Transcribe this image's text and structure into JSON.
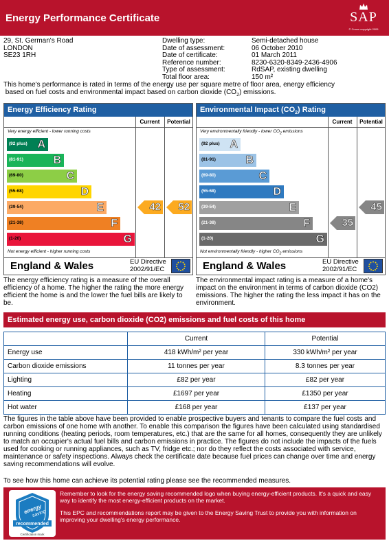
{
  "header": {
    "title": "Energy Performance Certificate",
    "sap_logo": "SAP",
    "sap_copyright": "© Crown copyright 2005"
  },
  "address": {
    "line1": "29, St. German's Road",
    "line2": "LONDON",
    "line3": "SE23 1RH"
  },
  "details": {
    "labels": [
      "Dwelling type:",
      "Date of assessment:",
      "Date of certificate:",
      "Reference number:",
      "Type of assessment:",
      "Total floor area:"
    ],
    "values": [
      "Semi-detached house",
      "06 October 2010",
      "01 March 2011",
      "8230-6320-8349-2436-4906",
      "RdSAP, existing dwelling",
      "150 m²"
    ]
  },
  "intro": {
    "line1": "This home's performance is rated in terms of the energy use per square metre of floor area, energy efficiency",
    "line2a": "based on fuel costs and environmental impact based on carbon dioxide (CO",
    "line2sub": "2",
    "line2b": ") emissions."
  },
  "efficiency_panel": {
    "title": "Energy Efficiency Rating",
    "current_label": "Current",
    "potential_label": "Potential",
    "top_note": "Very energy efficient - lower running costs",
    "bottom_note": "Not energy efficient - higher running costs",
    "bands": [
      {
        "range": "(92 plus)",
        "letter": "A",
        "color": "#008054"
      },
      {
        "range": "(81-91)",
        "letter": "B",
        "color": "#19b459"
      },
      {
        "range": "(69-80)",
        "letter": "C",
        "color": "#8dce46"
      },
      {
        "range": "(55-68)",
        "letter": "D",
        "color": "#ffd500"
      },
      {
        "range": "(39-54)",
        "letter": "E",
        "color": "#fcaa65"
      },
      {
        "range": "(21-38)",
        "letter": "F",
        "color": "#ef8023"
      },
      {
        "range": "(1-20)",
        "letter": "G",
        "color": "#e9153b"
      }
    ],
    "current_value": "42",
    "potential_value": "52",
    "arrow_color": "#fcaa20",
    "region": "England & Wales",
    "directive_line1": "EU Directive",
    "directive_line2": "2002/91/EC",
    "explanation": "The energy efficiency rating is a measure of the overall efficiency of a home. The higher the rating the more energy efficient the home is and the lower the fuel bills are likely to be."
  },
  "environment_panel": {
    "title_a": "Environmental Impact (CO",
    "title_sub": "2",
    "title_b": ") Rating",
    "current_label": "Current",
    "potential_label": "Potential",
    "top_note": "Very environmentally friendly - lower CO",
    "top_note_sub": "2",
    "top_note_end": " emissions",
    "bottom_note": "Not environmentally friendly - higher CO",
    "bottom_note_sub": "2",
    "bottom_note_end": " emissions",
    "bands": [
      {
        "range": "(92 plus)",
        "letter": "A",
        "color": "#cfe3f3"
      },
      {
        "range": "(81-91)",
        "letter": "B",
        "color": "#9cc3e6"
      },
      {
        "range": "(69-80)",
        "letter": "C",
        "color": "#5a9bd5"
      },
      {
        "range": "(55-68)",
        "letter": "D",
        "color": "#2f7ac0"
      },
      {
        "range": "(39-54)",
        "letter": "E",
        "color": "#a0a0a0"
      },
      {
        "range": "(21-38)",
        "letter": "F",
        "color": "#868686"
      },
      {
        "range": "(1-20)",
        "letter": "G",
        "color": "#6a6a6a"
      }
    ],
    "current_value": "35",
    "potential_value": "45",
    "arrow_color": "#868686",
    "region": "England & Wales",
    "directive_line1": "EU Directive",
    "directive_line2": "2002/91/EC",
    "explanation": "The environmental impact rating is a measure of a home's impact on the environment in terms of carbon dioxide (CO2) emissions. The higher the rating the less impact it has on the environment."
  },
  "estimate": {
    "title": "Estimated energy use, carbon dioxide (CO2) emissions and fuel costs of this home",
    "col_current": "Current",
    "col_potential": "Potential",
    "rows": [
      {
        "label": "Energy use",
        "current": "418 kWh/m² per year",
        "potential": "330 kWh/m² per year"
      },
      {
        "label": "Carbon dioxide emissions",
        "current": "11 tonnes per year",
        "potential": "8.3 tonnes per year"
      },
      {
        "label": "Lighting",
        "current": "£82 per year",
        "potential": "£82 per year"
      },
      {
        "label": "Heating",
        "current": "£1697 per year",
        "potential": "£1350 per year"
      },
      {
        "label": "Hot water",
        "current": "£168 per year",
        "potential": "£137 per year"
      }
    ]
  },
  "figures_text": "The figures in the table above have been provided to enable prospective buyers and tenants to compare the fuel costs and carbon emissions of one home with another. To enable this comparison the figures have been calculated using standardised running conditions (heating periods, room temperatures, etc.) that are the same for all homes, consequently they are unlikely to match an occupier's actual fuel bills and carbon emissions in practice. The figures do not include the impacts of the fuels used for cooking or running appliances, such as TV, fridge etc.; nor do they reflect the costs associated with service, maintenance or safety inspections. Always check the certificate date because fuel prices can change over time and energy saving recommendations will evolve.",
  "see_text": "To see how this home can achieve its potential rating please see the recommended measures.",
  "bottom": {
    "text1": "Remember to look for the energy saving recommended logo when buying energy-efficient products. It's a quick and easy way to identify the most energy-efficient products on the market.",
    "text2": "This EPC and recommendations report may be given to the Energy Saving Trust to provide you with information on improving your dwelling's energy performance.",
    "logo_line1": "energy",
    "logo_line2": "saving",
    "logo_line3": "recommended",
    "logo_caption": "Certification mark"
  }
}
